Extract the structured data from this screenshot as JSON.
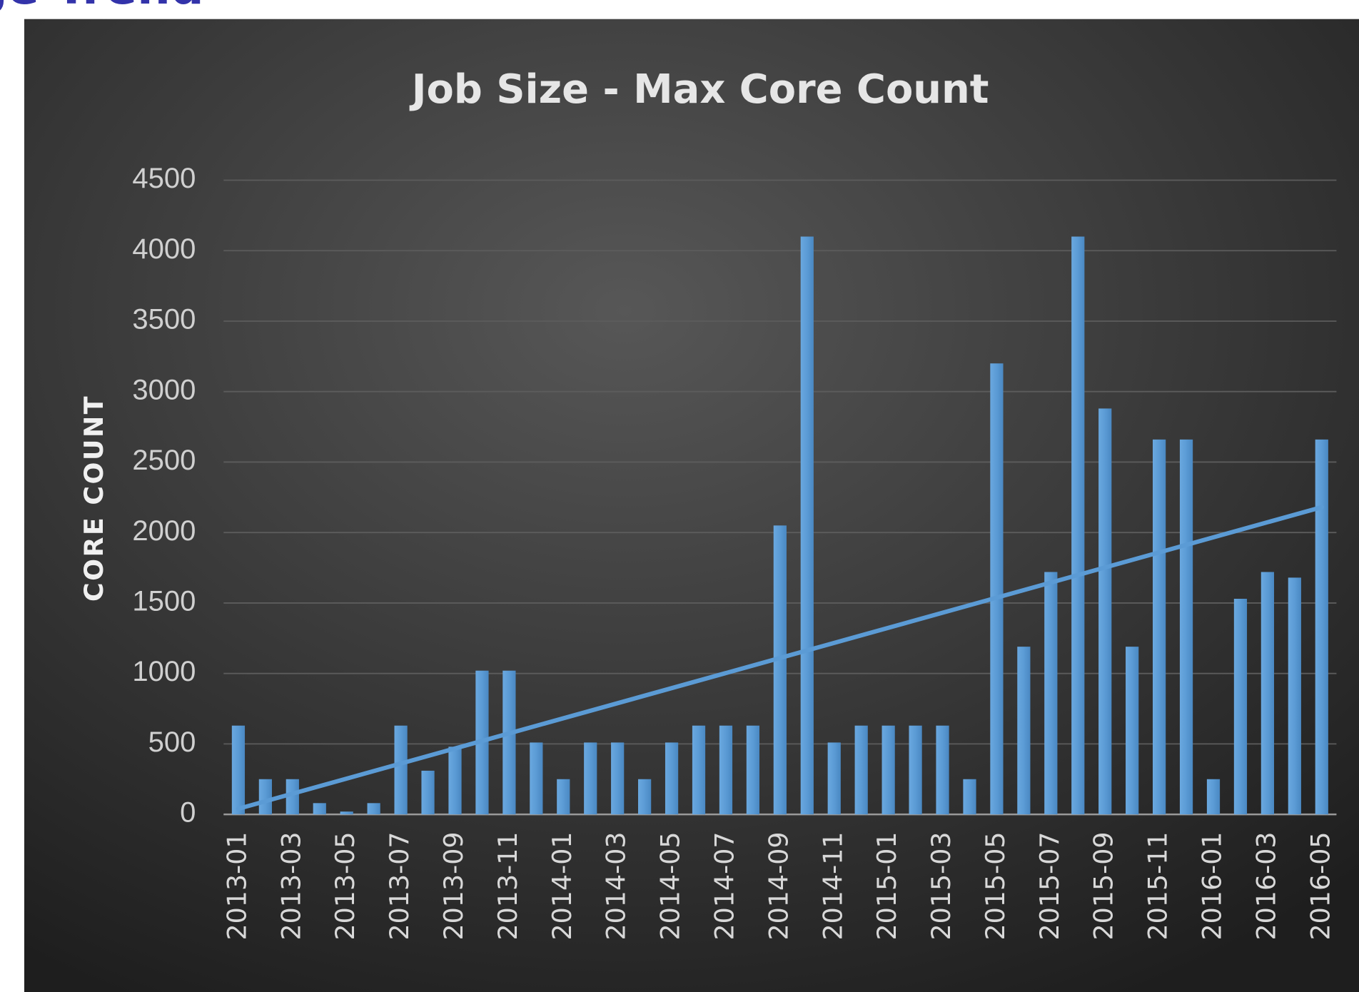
{
  "header": {
    "title_fragment": "ge Trend"
  },
  "chart_data": {
    "type": "bar",
    "title": "Job Size - Max Core Count",
    "y_label": "CORE COUNT",
    "categories": [
      "2013-01",
      null,
      "2013-03",
      null,
      "2013-05",
      null,
      "2013-07",
      null,
      "2013-09",
      null,
      "2013-11",
      null,
      "2014-01",
      null,
      "2014-03",
      null,
      "2014-05",
      null,
      "2014-07",
      null,
      "2014-09",
      null,
      "2014-11",
      null,
      "2015-01",
      null,
      "2015-03",
      null,
      "2015-05",
      null,
      "2015-07",
      null,
      "2015-09",
      null,
      "2015-11",
      null,
      "2016-01",
      null,
      "2016-03",
      null,
      "2016-05"
    ],
    "values": [
      630,
      250,
      250,
      80,
      20,
      80,
      630,
      310,
      480,
      1020,
      1020,
      510,
      250,
      510,
      510,
      250,
      510,
      630,
      630,
      630,
      2050,
      4100,
      510,
      630,
      630,
      630,
      630,
      250,
      3200,
      1190,
      1720,
      4100,
      2880,
      1190,
      2660,
      2660,
      250,
      1530,
      1720,
      1680,
      2660
    ],
    "color": "#5b9bd5",
    "trendline": {
      "color": "#5b9bd5",
      "values": [
        40,
        2180
      ]
    },
    "ylim": [
      0,
      4500
    ],
    "yticks": [
      0,
      500,
      1000,
      1500,
      2000,
      2500,
      3000,
      3500,
      4000,
      4500
    ],
    "grid": true
  }
}
